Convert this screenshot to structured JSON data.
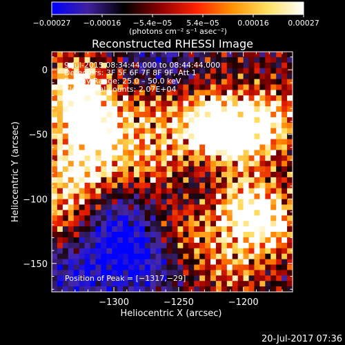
{
  "chart_data": {
    "type": "heatmap",
    "title": "Reconstructed RHESSI Image",
    "xlabel": "Heliocentric X (arcsec)",
    "ylabel": "Heliocentric Y (arcsec)",
    "xlim": [
      -1348,
      -1162
    ],
    "ylim": [
      -172,
      14
    ],
    "x_ticks": [
      {
        "value": -1300,
        "label": "−1300"
      },
      {
        "value": -1250,
        "label": "−1250"
      },
      {
        "value": -1200,
        "label": "−1200"
      }
    ],
    "y_ticks": [
      {
        "value": 0,
        "label": "0"
      },
      {
        "value": -50,
        "label": "−50"
      },
      {
        "value": -100,
        "label": "−100"
      },
      {
        "value": -150,
        "label": "−150"
      }
    ],
    "annotations": [
      "9-Jul-2015 08:34:44.000 to 08:44:44.000",
      "Detectors: 3F 5F 6F 7F 8F 9F, Att 1",
      "Energy Range: 25.0 – 50.0 keV",
      "Clean     Total counts: 2.07E+04"
    ],
    "peak_label": "Position of Peak = [−1317,−29]",
    "colorbar": {
      "range": [
        -0.00027,
        0.00027
      ],
      "tick_labels": [
        "−0.00027",
        "−0.00016",
        "−5.4e−05",
        "5.4e−05",
        "0.00016",
        "0.00027"
      ],
      "unit_label": "(photons cm⁻² s⁻¹ asec⁻²)",
      "colors": [
        "#0000ff",
        "#4020a0",
        "#000000",
        "#8b0000",
        "#ff2000",
        "#ff9000",
        "#ffe060",
        "#ffffff"
      ]
    },
    "hot_regions": [
      {
        "x": -1330,
        "y": -15,
        "w": 0.9
      },
      {
        "x": -1318,
        "y": -40,
        "w": 1.0
      },
      {
        "x": -1333,
        "y": -80,
        "w": 0.85
      },
      {
        "x": -1300,
        "y": -65,
        "w": 0.55
      },
      {
        "x": -1270,
        "y": -30,
        "w": 0.5
      },
      {
        "x": -1228,
        "y": -42,
        "w": 1.0
      },
      {
        "x": -1205,
        "y": -50,
        "w": 0.9
      },
      {
        "x": -1180,
        "y": -40,
        "w": 0.8
      },
      {
        "x": -1200,
        "y": -105,
        "w": 0.85
      },
      {
        "x": -1178,
        "y": -120,
        "w": 0.75
      },
      {
        "x": -1245,
        "y": -120,
        "w": 0.6
      },
      {
        "x": -1335,
        "y": -118,
        "w": 0.5
      },
      {
        "x": -1210,
        "y": -150,
        "w": 0.55
      },
      {
        "x": -1262,
        "y": -75,
        "w": 0.6
      }
    ],
    "cold_regions": [
      {
        "x": -1300,
        "y": -125,
        "w": 0.9
      },
      {
        "x": -1280,
        "y": -150,
        "w": 0.85
      },
      {
        "x": -1265,
        "y": 5,
        "w": 0.6
      },
      {
        "x": -1330,
        "y": -160,
        "w": 0.8
      },
      {
        "x": -1245,
        "y": -95,
        "w": 0.5
      }
    ]
  },
  "footer": {
    "timestamp": "20-Jul-2017 07:36"
  }
}
